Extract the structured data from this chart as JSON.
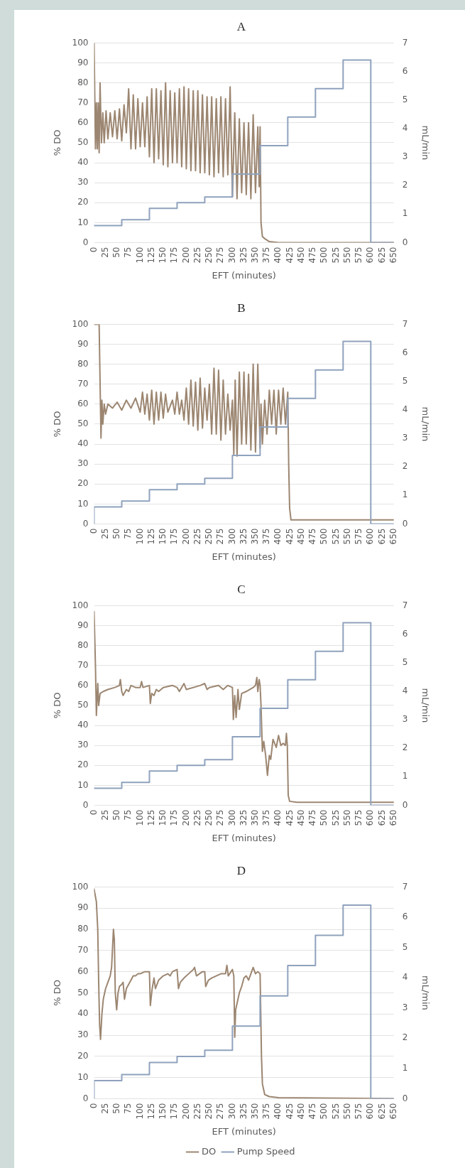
{
  "chart_data": [
    {
      "type": "line",
      "title": "A",
      "xlabel": "EFT (minutes)",
      "ylabel": "% DO",
      "y2label": "mL/min",
      "grid": "y",
      "marker": "none",
      "xlim": [
        0,
        650
      ],
      "xticks": [
        0,
        25,
        50,
        75,
        100,
        125,
        150,
        175,
        200,
        225,
        250,
        275,
        300,
        325,
        350,
        375,
        400,
        425,
        450,
        475,
        500,
        525,
        550,
        575,
        600,
        625,
        650
      ],
      "ylim": [
        0,
        100
      ],
      "yticks": [
        0,
        10,
        20,
        30,
        40,
        50,
        60,
        70,
        80,
        90,
        100
      ],
      "y2lim": [
        0,
        7
      ],
      "y2ticks": [
        0,
        1,
        2,
        3,
        4,
        5,
        6,
        7
      ],
      "series": [
        {
          "type": "line",
          "color": "#9c8671",
          "x": [
            0,
            3,
            5,
            7,
            9,
            11,
            13,
            16,
            19,
            22,
            26,
            30,
            35,
            40,
            45,
            50,
            55,
            60,
            65,
            70,
            75,
            80,
            85,
            90,
            95,
            100,
            105,
            110,
            115,
            120,
            125,
            130,
            135,
            140,
            145,
            150,
            155,
            160,
            165,
            170,
            175,
            180,
            185,
            190,
            195,
            200,
            205,
            210,
            215,
            220,
            225,
            230,
            235,
            240,
            245,
            250,
            255,
            260,
            265,
            270,
            275,
            280,
            285,
            290,
            295,
            300,
            305,
            310,
            315,
            320,
            325,
            330,
            335,
            340,
            345,
            350,
            355,
            358,
            360,
            362,
            365,
            370,
            380,
            400,
            650
          ],
          "values": [
            100,
            47,
            70,
            47,
            70,
            45,
            80,
            50,
            65,
            50,
            66,
            52,
            65,
            53,
            66,
            52,
            67,
            51,
            69,
            55,
            77,
            47,
            74,
            47,
            72,
            48,
            70,
            48,
            73,
            43,
            77,
            40,
            77,
            42,
            76,
            39,
            80,
            38,
            76,
            40,
            75,
            40,
            77,
            38,
            78,
            37,
            77,
            36,
            76,
            36,
            76,
            35,
            74,
            35,
            73,
            34,
            73,
            33,
            72,
            35,
            73,
            33,
            72,
            34,
            78,
            23,
            65,
            22,
            62,
            25,
            60,
            24,
            60,
            22,
            64,
            25,
            58,
            28,
            58,
            10,
            3,
            2,
            0.5,
            0,
            0
          ]
        },
        {
          "type": "step",
          "axis": "y2",
          "color": "#8fa2bd",
          "x": [
            0,
            60,
            120,
            180,
            240,
            300,
            360,
            420,
            480,
            540,
            600,
            650
          ],
          "values": [
            0.6,
            0.8,
            1.2,
            1.4,
            1.6,
            2.4,
            3.4,
            4.4,
            5.4,
            6.4,
            0,
            0
          ]
        }
      ]
    },
    {
      "type": "line",
      "title": "B",
      "xlabel": "EFT (minutes)",
      "ylabel": "% DO",
      "y2label": "mL/min",
      "grid": "y",
      "marker": "none",
      "xlim": [
        0,
        650
      ],
      "xticks": [
        0,
        25,
        50,
        75,
        100,
        125,
        150,
        175,
        200,
        225,
        250,
        275,
        300,
        325,
        350,
        375,
        400,
        425,
        450,
        475,
        500,
        525,
        550,
        575,
        600,
        625,
        650
      ],
      "ylim": [
        0,
        100
      ],
      "yticks": [
        0,
        10,
        20,
        30,
        40,
        50,
        60,
        70,
        80,
        90,
        100
      ],
      "y2lim": [
        0,
        7
      ],
      "y2ticks": [
        0,
        1,
        2,
        3,
        4,
        5,
        6,
        7
      ],
      "series": [
        {
          "type": "line",
          "color": "#9c8671",
          "x": [
            0,
            11,
            15,
            17,
            19,
            22,
            25,
            30,
            40,
            50,
            60,
            70,
            80,
            90,
            100,
            105,
            110,
            115,
            120,
            125,
            130,
            135,
            140,
            145,
            150,
            155,
            160,
            170,
            175,
            180,
            185,
            190,
            195,
            200,
            205,
            210,
            215,
            220,
            225,
            230,
            235,
            240,
            245,
            250,
            255,
            260,
            265,
            270,
            275,
            280,
            285,
            290,
            295,
            300,
            303,
            306,
            310,
            315,
            320,
            325,
            330,
            335,
            340,
            345,
            350,
            355,
            360,
            362,
            365,
            370,
            375,
            380,
            385,
            390,
            395,
            400,
            405,
            410,
            415,
            420,
            422,
            424,
            427,
            440,
            650
          ],
          "values": [
            100,
            100,
            43,
            62,
            50,
            60,
            55,
            60,
            58,
            61,
            57,
            62,
            58,
            63,
            56,
            66,
            55,
            65,
            52,
            67,
            50,
            66,
            52,
            66,
            53,
            65,
            56,
            62,
            55,
            66,
            55,
            62,
            52,
            68,
            50,
            72,
            49,
            71,
            47,
            73,
            48,
            68,
            52,
            70,
            45,
            78,
            45,
            77,
            42,
            72,
            45,
            65,
            47,
            62,
            35,
            72,
            34,
            76,
            40,
            76,
            40,
            75,
            37,
            80,
            36,
            80,
            38,
            60,
            40,
            62,
            45,
            67,
            50,
            67,
            45,
            67,
            50,
            68,
            50,
            66,
            30,
            8,
            2,
            2,
            2
          ]
        },
        {
          "type": "step",
          "axis": "y2",
          "color": "#8fa2bd",
          "x": [
            0,
            0,
            60,
            120,
            180,
            240,
            300,
            360,
            420,
            480,
            540,
            600,
            650
          ],
          "values": [
            0,
            0.6,
            0.8,
            1.2,
            1.4,
            1.6,
            2.4,
            3.4,
            4.4,
            5.4,
            6.4,
            0,
            0
          ]
        }
      ]
    },
    {
      "type": "line",
      "title": "C",
      "xlabel": "EFT (minutes)",
      "ylabel": "% DO",
      "y2label": "mL/min",
      "grid": "y",
      "marker": "none",
      "xlim": [
        0,
        650
      ],
      "xticks": [
        0,
        25,
        50,
        75,
        100,
        125,
        150,
        175,
        200,
        225,
        250,
        275,
        300,
        325,
        350,
        375,
        400,
        425,
        450,
        475,
        500,
        525,
        550,
        575,
        600,
        625,
        650
      ],
      "ylim": [
        0,
        100
      ],
      "yticks": [
        0,
        10,
        20,
        30,
        40,
        50,
        60,
        70,
        80,
        90,
        100
      ],
      "y2lim": [
        0,
        7
      ],
      "y2ticks": [
        0,
        1,
        2,
        3,
        4,
        5,
        6,
        7
      ],
      "series": [
        {
          "type": "line",
          "color": "#9c8671",
          "x": [
            0,
            3,
            5,
            8,
            10,
            13,
            20,
            30,
            45,
            55,
            57,
            60,
            63,
            70,
            75,
            80,
            90,
            100,
            103,
            106,
            120,
            122,
            125,
            130,
            135,
            140,
            150,
            170,
            180,
            185,
            195,
            200,
            230,
            240,
            245,
            250,
            270,
            280,
            290,
            300,
            302,
            305,
            308,
            312,
            315,
            320,
            330,
            345,
            350,
            353,
            355,
            358,
            360,
            362,
            365,
            368,
            372,
            376,
            380,
            383,
            388,
            395,
            400,
            405,
            410,
            415,
            417,
            419,
            421,
            424,
            440,
            650
          ],
          "values": [
            97,
            70,
            45,
            61,
            50,
            56,
            57,
            58,
            59,
            60,
            63,
            57,
            55,
            58,
            57,
            60,
            59,
            59,
            62,
            59,
            60,
            51,
            56,
            55,
            58,
            57,
            59,
            60,
            59,
            57,
            61,
            58,
            60,
            61,
            58,
            59,
            60,
            58,
            60,
            59,
            43,
            55,
            44,
            58,
            48,
            56,
            57,
            59,
            60,
            64,
            57,
            63,
            60,
            50,
            27,
            32,
            25,
            15,
            25,
            23,
            33,
            29,
            35,
            30,
            31,
            30,
            36,
            30,
            5,
            2,
            1.5,
            1.5
          ]
        },
        {
          "type": "step",
          "axis": "y2",
          "color": "#8fa2bd",
          "x": [
            0,
            60,
            120,
            180,
            240,
            300,
            360,
            420,
            480,
            540,
            600,
            650
          ],
          "values": [
            0.6,
            0.8,
            1.2,
            1.4,
            1.6,
            2.4,
            3.4,
            4.4,
            5.4,
            6.4,
            0,
            0
          ]
        }
      ]
    },
    {
      "type": "line",
      "title": "D",
      "xlabel": "EFT (minutes)",
      "ylabel": "% DO",
      "y2label": "mL/min",
      "grid": "y",
      "marker": "none",
      "legend": "bottom",
      "xlim": [
        0,
        650
      ],
      "xticks": [
        0,
        25,
        50,
        75,
        100,
        125,
        150,
        175,
        200,
        225,
        250,
        275,
        300,
        325,
        350,
        375,
        400,
        425,
        450,
        475,
        500,
        525,
        550,
        575,
        600,
        625,
        650
      ],
      "ylim": [
        0,
        100
      ],
      "yticks": [
        0,
        10,
        20,
        30,
        40,
        50,
        60,
        70,
        80,
        90,
        100
      ],
      "y2lim": [
        0,
        7
      ],
      "y2ticks": [
        0,
        1,
        2,
        3,
        4,
        5,
        6,
        7
      ],
      "series": [
        {
          "type": "line",
          "name": "DO",
          "color": "#9c8671",
          "x": [
            0,
            5,
            8,
            10,
            12,
            14,
            17,
            20,
            25,
            30,
            35,
            38,
            42,
            44,
            46,
            49,
            52,
            55,
            60,
            63,
            66,
            70,
            75,
            80,
            85,
            90,
            95,
            100,
            110,
            120,
            122,
            126,
            130,
            133,
            140,
            150,
            160,
            165,
            170,
            180,
            183,
            187,
            195,
            205,
            215,
            218,
            222,
            235,
            240,
            242,
            248,
            255,
            265,
            275,
            285,
            288,
            291,
            300,
            303,
            305,
            307,
            310,
            315,
            320,
            325,
            330,
            335,
            340,
            345,
            350,
            355,
            360,
            363,
            365,
            370,
            380,
            400,
            650
          ],
          "values": [
            99,
            93,
            80,
            55,
            35,
            28,
            40,
            47,
            52,
            55,
            58,
            62,
            80,
            75,
            50,
            42,
            50,
            53,
            54,
            55,
            47,
            52,
            54,
            56,
            58,
            58,
            59,
            59,
            60,
            60,
            44,
            52,
            57,
            52,
            56,
            58,
            59,
            58,
            60,
            61,
            52,
            55,
            57,
            59,
            61,
            62,
            58,
            60,
            60,
            53,
            56,
            57,
            58,
            59,
            59,
            63,
            58,
            61,
            58,
            29,
            42,
            45,
            50,
            53,
            57,
            58,
            56,
            59,
            62,
            59,
            60,
            59,
            20,
            7,
            2,
            1,
            0.5,
            0
          ]
        },
        {
          "type": "step",
          "axis": "y2",
          "name": "Pump Speed",
          "color": "#8fa2bd",
          "x": [
            0,
            0,
            60,
            120,
            180,
            240,
            300,
            360,
            420,
            480,
            540,
            600,
            650
          ],
          "values": [
            0,
            0.6,
            0.8,
            1.2,
            1.4,
            1.6,
            2.4,
            3.4,
            4.4,
            5.4,
            6.4,
            0,
            0
          ]
        }
      ]
    }
  ]
}
